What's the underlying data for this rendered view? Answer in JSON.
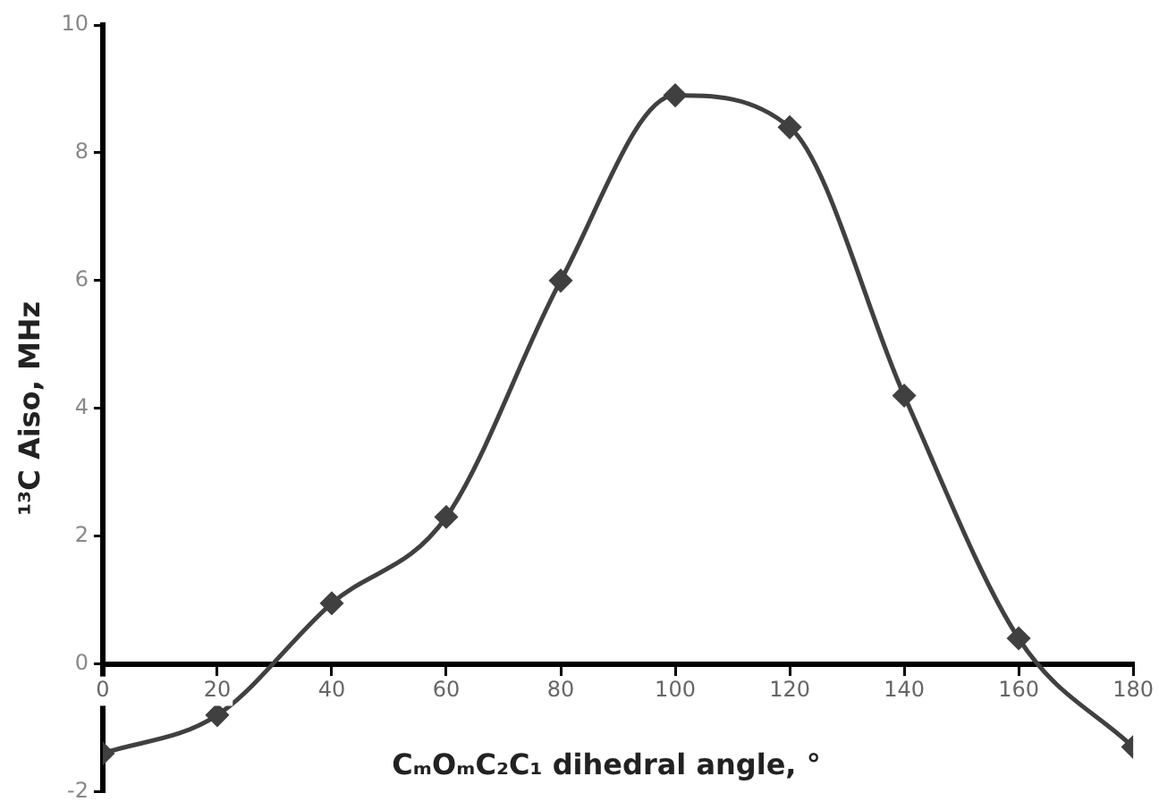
{
  "chart_data": {
    "type": "line",
    "xlabel": "CₘOₘC₂C₁  dihedral angle, °",
    "ylabel": "¹³C Aiso, MHz",
    "x": [
      0,
      20,
      40,
      60,
      80,
      100,
      120,
      140,
      160,
      180
    ],
    "series": [
      {
        "color": "#404040",
        "values": [
          -1.4,
          -0.8,
          0.95,
          2.3,
          6.0,
          8.9,
          8.4,
          4.2,
          0.4,
          -1.3
        ]
      }
    ],
    "xlim": [
      0,
      180
    ],
    "xticks": [
      0,
      20,
      40,
      60,
      80,
      100,
      120,
      140,
      160,
      180
    ],
    "ylim": [
      -2,
      10
    ],
    "yticks": [
      -2,
      0,
      2,
      4,
      6,
      8,
      10
    ],
    "grid": false,
    "legend": false,
    "marker": "diamond",
    "line_style": "solid"
  }
}
